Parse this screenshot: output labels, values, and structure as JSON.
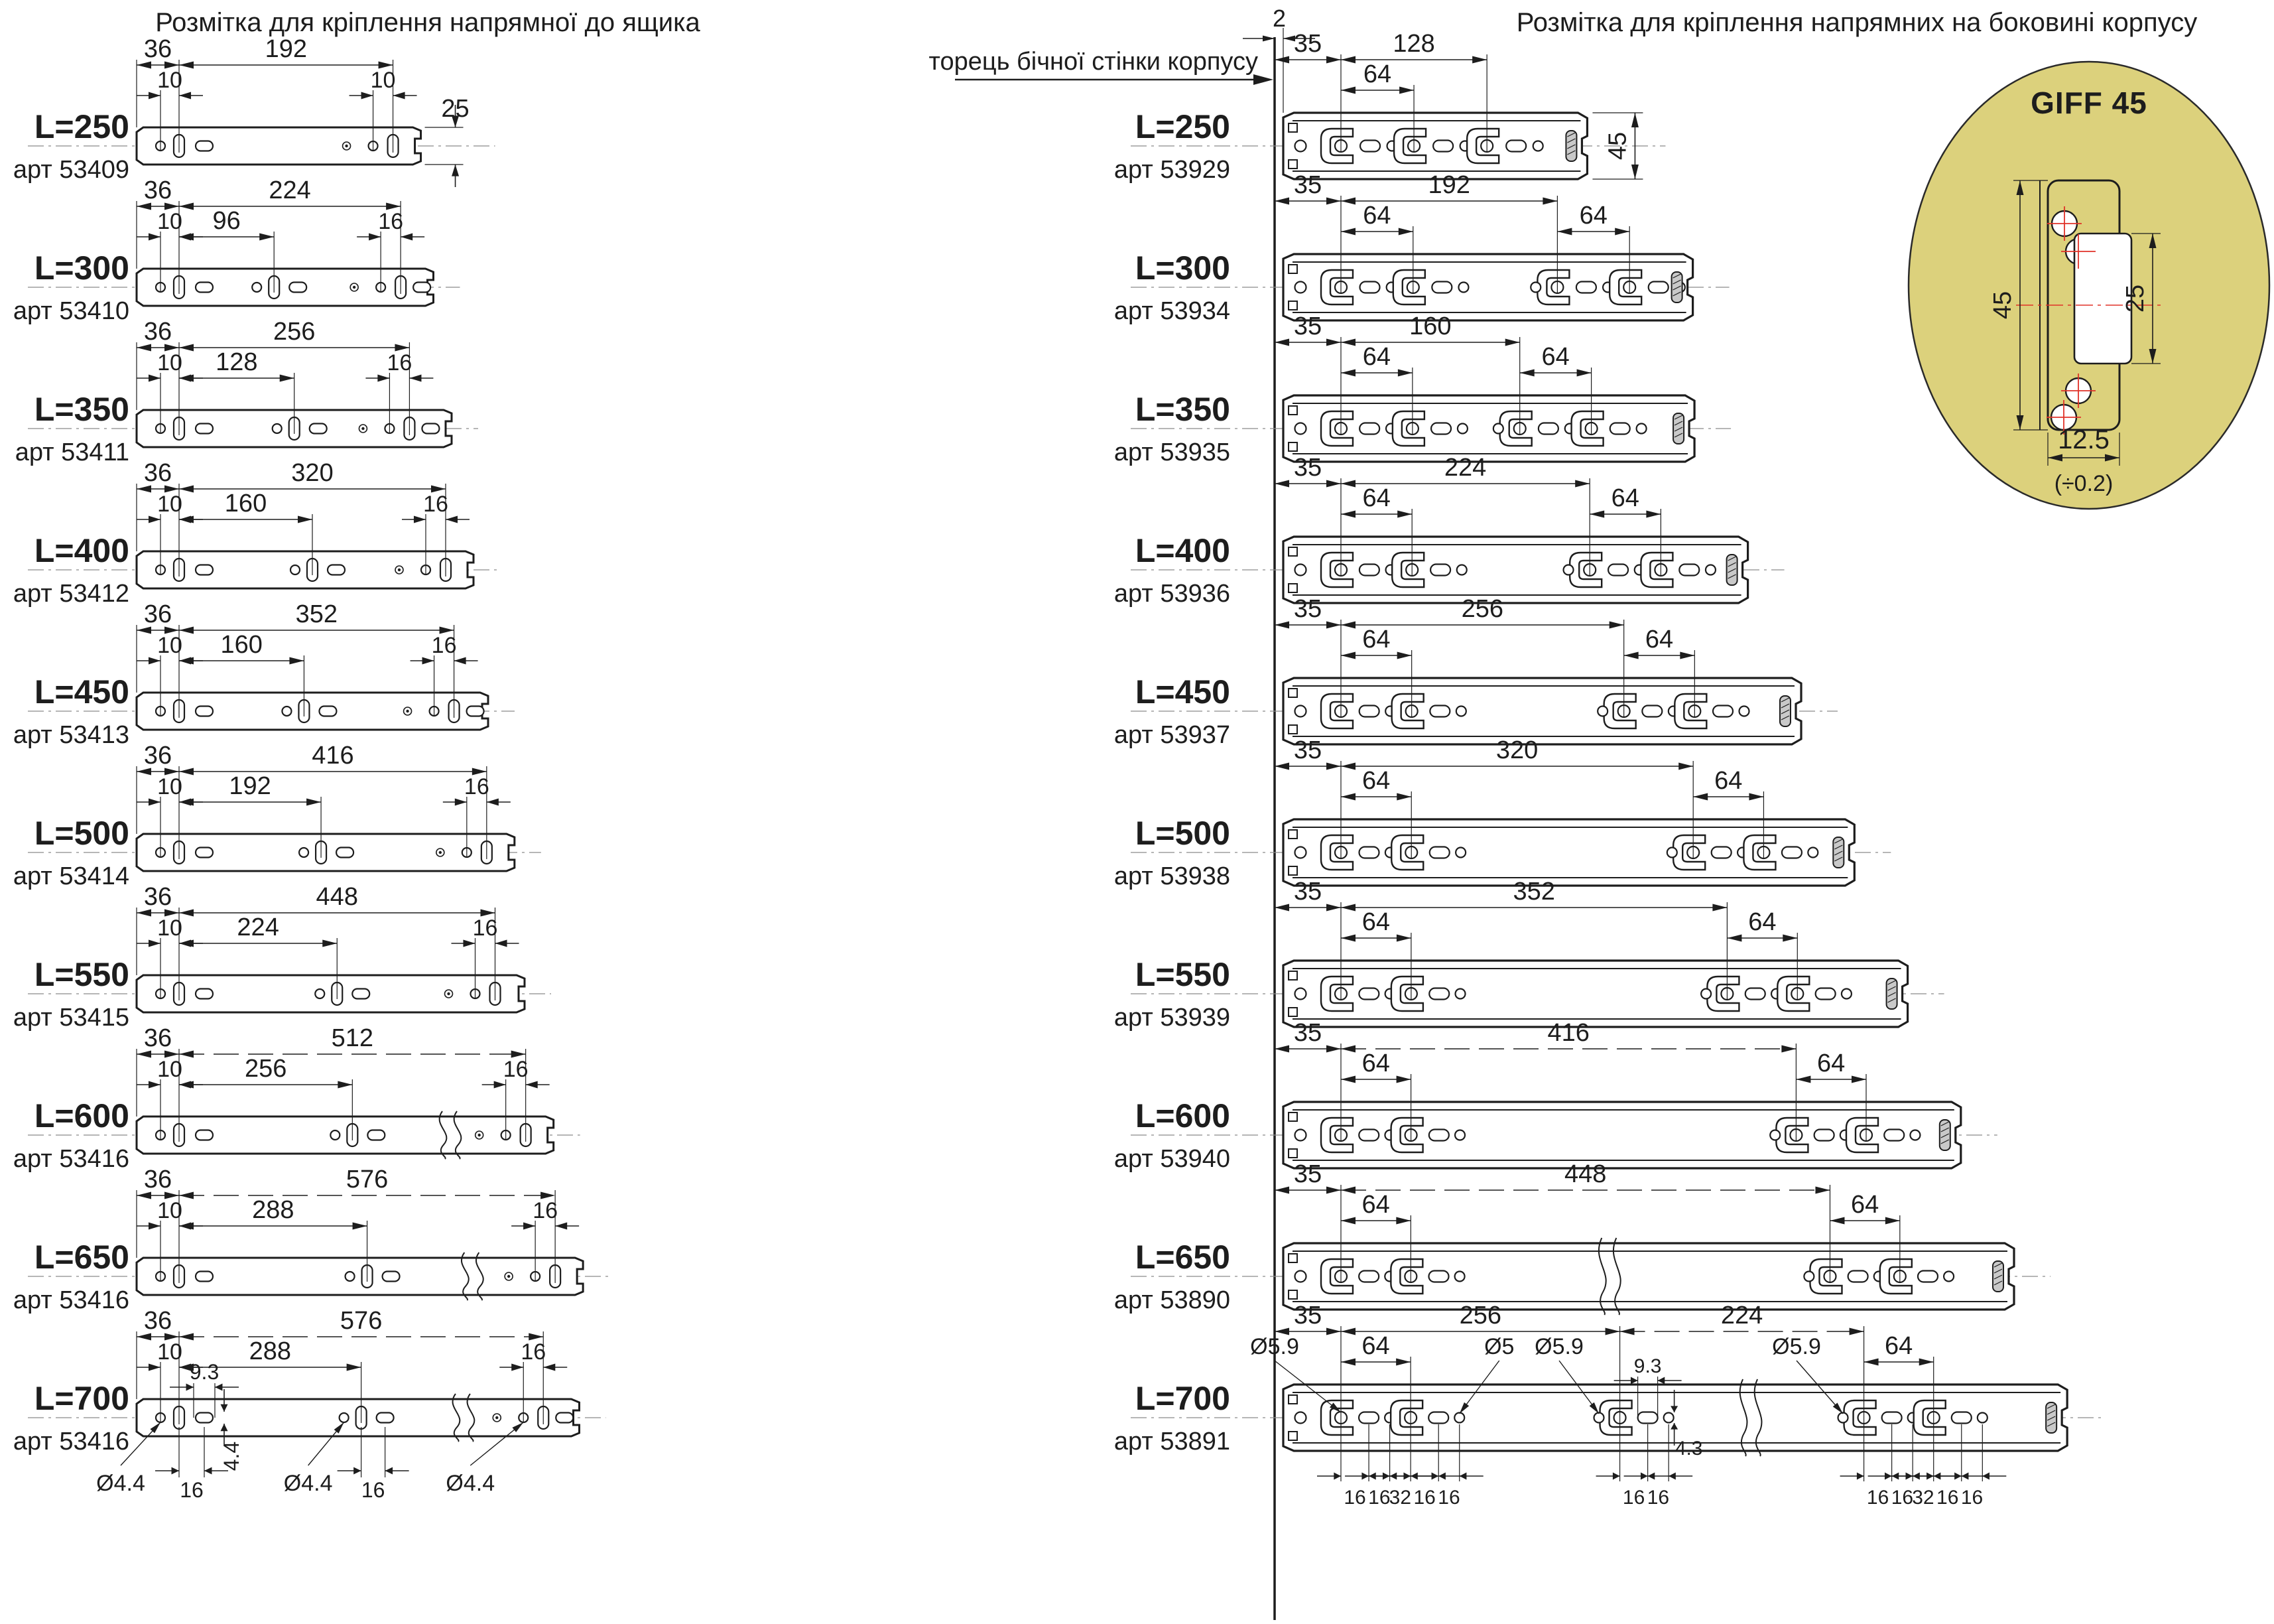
{
  "page": {
    "bg": "#ffffff",
    "ink": "#1d1d1d",
    "line_gray": "#8a8a8a",
    "accent_red": "#e03228",
    "inset_fill": "#dcd17c"
  },
  "left": {
    "title": "Розмітка для кріплення напрямної до ящика",
    "rows": [
      {
        "label": "L=250",
        "art": "арт 53409",
        "edge": "36",
        "pitch": "10",
        "span": "192",
        "right": "10",
        "height": "25"
      },
      {
        "label": "L=300",
        "art": "арт 53410",
        "edge": "36",
        "pitch": "10",
        "span": "224",
        "mid": "96",
        "right": "16"
      },
      {
        "label": "L=350",
        "art": "арт 53411",
        "edge": "36",
        "pitch": "10",
        "span": "256",
        "mid": "128",
        "right": "16"
      },
      {
        "label": "L=400",
        "art": "арт 53412",
        "edge": "36",
        "pitch": "10",
        "span": "320",
        "mid": "160",
        "right": "16"
      },
      {
        "label": "L=450",
        "art": "арт 53413",
        "edge": "36",
        "pitch": "10",
        "span": "352",
        "mid": "160",
        "right": "16"
      },
      {
        "label": "L=500",
        "art": "арт 53414",
        "edge": "36",
        "pitch": "10",
        "span": "416",
        "mid": "192",
        "right": "16"
      },
      {
        "label": "L=550",
        "art": "арт 53415",
        "edge": "36",
        "pitch": "10",
        "span": "448",
        "mid": "224",
        "right": "16"
      },
      {
        "label": "L=600",
        "art": "арт 53416",
        "edge": "36",
        "pitch": "10",
        "span": "512",
        "mid": "256",
        "right": "16",
        "break": true
      },
      {
        "label": "L=650",
        "art": "арт 53416",
        "edge": "36",
        "pitch": "10",
        "span": "576",
        "mid": "288",
        "right": "16",
        "break": true
      },
      {
        "label": "L=700",
        "art": "арт 53416",
        "edge": "36",
        "pitch": "10",
        "span": "576",
        "mid": "288",
        "right": "16",
        "break": true,
        "extra": {
          "hole_dia": "Ø4.4",
          "slot_len": "9.3",
          "slot_wid": "4.4",
          "pitch16": "16"
        }
      }
    ]
  },
  "right": {
    "title": "Розмітка для кріплення напрямних на боковині корпусу",
    "rows": [
      {
        "label": "L=250",
        "art": "арт 53929",
        "edge": "35",
        "span": "128",
        "pitch": "64",
        "height": "45"
      },
      {
        "label": "L=300",
        "art": "арт 53934",
        "edge": "35",
        "span": "192",
        "pitch": "64",
        "pitch2": "64"
      },
      {
        "label": "L=350",
        "art": "арт 53935",
        "edge": "35",
        "span": "160",
        "pitch": "64",
        "pitch2": "64"
      },
      {
        "label": "L=400",
        "art": "арт 53936",
        "edge": "35",
        "span": "224",
        "pitch": "64",
        "pitch2": "64"
      },
      {
        "label": "L=450",
        "art": "арт 53937",
        "edge": "35",
        "span": "256",
        "pitch": "64",
        "pitch2": "64"
      },
      {
        "label": "L=500",
        "art": "арт 53938",
        "edge": "35",
        "span": "320",
        "pitch": "64",
        "pitch2": "64"
      },
      {
        "label": "L=550",
        "art": "арт 53939",
        "edge": "35",
        "span": "352",
        "pitch": "64",
        "pitch2": "64"
      },
      {
        "label": "L=600",
        "art": "арт 53940",
        "edge": "35",
        "span": "416",
        "pitch": "64",
        "pitch2": "64",
        "dashed": true
      },
      {
        "label": "L=650",
        "art": "арт 53890",
        "edge": "35",
        "span": "448",
        "pitch": "64",
        "pitch2": "64",
        "break": true
      },
      {
        "label": "L=700",
        "art": "арт 53891",
        "edge": "35",
        "span": "256",
        "span2": "224",
        "pitch": "64",
        "pitch2": "64",
        "break": true,
        "extra": {
          "dia_large": "Ø5.9",
          "dia_small": "Ø5",
          "slot_len": "9.3",
          "slot_wid": "4.3",
          "bottom": [
            "16",
            "16",
            "32",
            "16",
            "16"
          ],
          "bottom_mid": [
            "16",
            "16"
          ]
        }
      }
    ]
  },
  "divider": {
    "gap": "2",
    "wall_label": "торець бічної стінки корпусу"
  },
  "inset": {
    "title": "GIFF 45",
    "height": "45",
    "inner_height": "25",
    "width": "12.5",
    "tolerance": "(÷0.2)"
  }
}
